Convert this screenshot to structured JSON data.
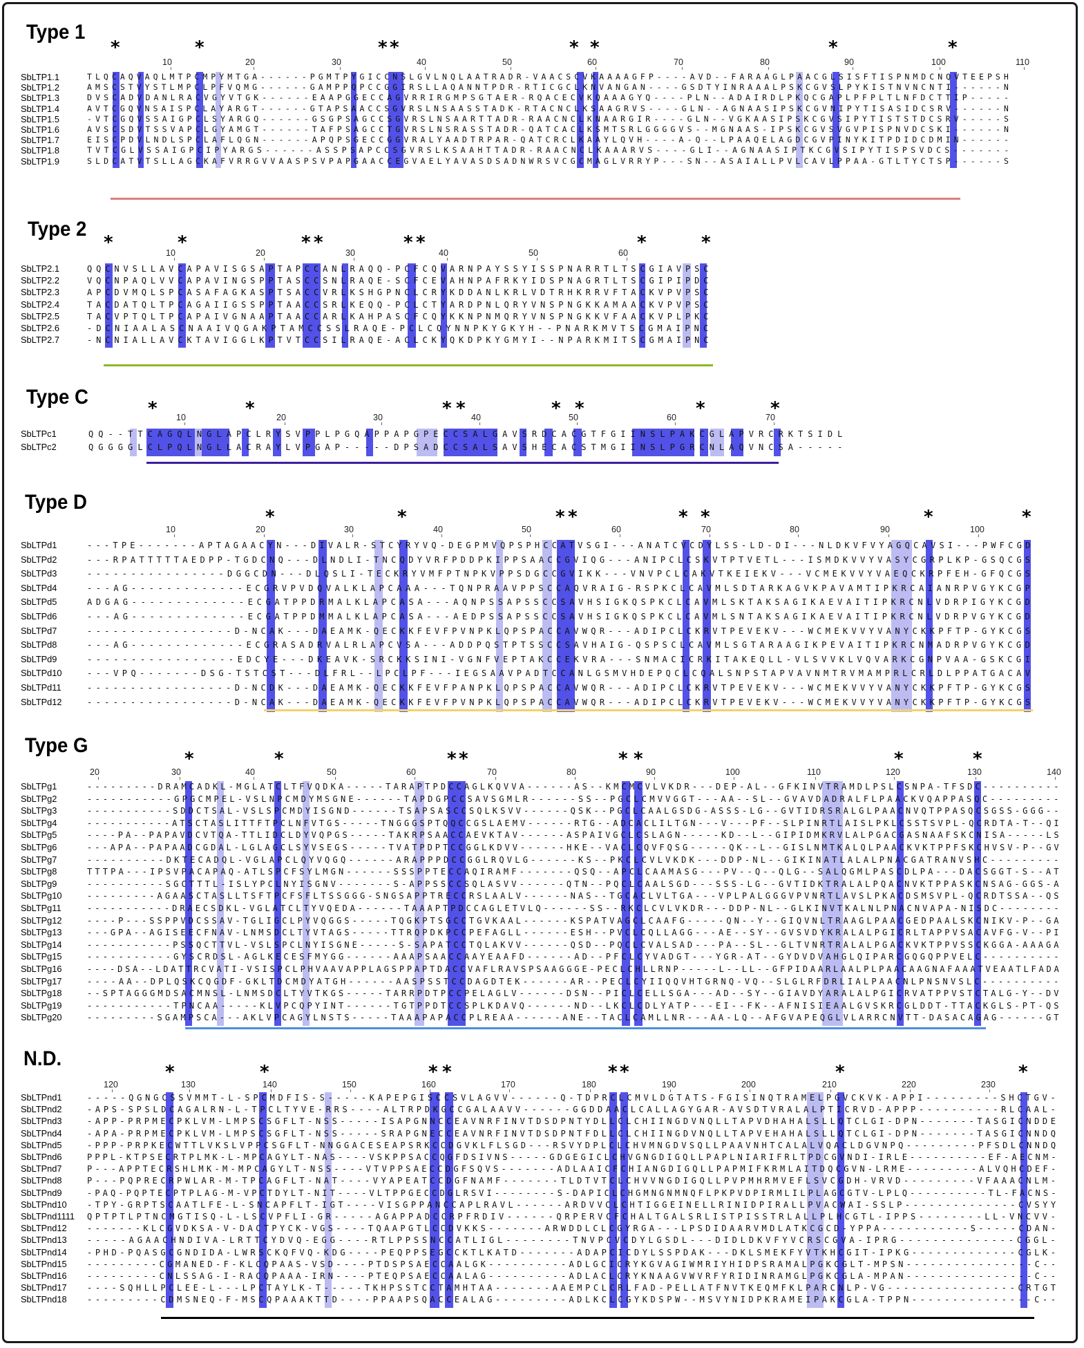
{
  "panels": [
    {
      "title": "Type 1",
      "ticks": [
        "10",
        "20",
        "30",
        "40",
        "50",
        "60",
        "70",
        "80",
        "90",
        "100",
        "110"
      ],
      "underline_color": "#e07b7b",
      "rows": [
        {
          "label": "SbLTP1.1",
          "seq": "TLQCAQVAQLMTPCMPYMTGA------PGMTPYGICCNSLGVLNQLAATRADR-VAACSCVKAAAAGFP----AVD--FARAAGLPAACGLSISFTISPNMDCNQVTEEPSH"
        },
        {
          "label": "SbLTP1.2",
          "seq": "AMSCSTVYSTLMPCLPFVQMG------GAMPPQPCCGGIRSLLAQANNTPDR-RTICGCLKNVANGAN----GSDTYINRAAALPSKCGVSLPYKISTNVNCNTI------N"
        },
        {
          "label": "SbLTP1.3",
          "seq": "DVSCADVDANLRACVGYVTGK------EAAPGGECCAGVRRIRGMPSGTAER-RQACECVKQAAAGYQ----PLN--ADAIRDLPKQCGAPLPFPLTLNFDCTTIP-----"
        },
        {
          "label": "SbLTP1.4",
          "seq": "AVTCGQVNSAISPCLAYARGT------GTAPSAACCSGVRSLNSAASSTADK-RTACNCLKSAAGRVS----GLN--AGNAASIPSKCGVNIPYTISASIDCSRV------N"
        },
        {
          "label": "SbLTP1.5",
          "seq": "-VTCGQVSSAIGPCLSYARGQ------GSGPSAGCCSGVRSLNSAARTTADR-RAACNCLKNAARGIR----GLN--VGKAASIPSKCGVSIPYTISTSTDCSRV-----S"
        },
        {
          "label": "SbLTP1.6",
          "seq": "AVSCSDVTSSVAPCLGYAMGT------TAFPSAGCCTGVRSLNSRASSTADR-QATCACLKSMTSRLGGGGVS--MGNAAS-IPSKCGVSVGVPISPNVDCSKI------N"
        },
        {
          "label": "SbLTP1.7",
          "seq": "EISCPDVLNDLSPCLAFLQGN------APQPSGECCGGVRALYAADTRPAR-QATCRCLKAAYLQVH----A-Q--LPAAQELAGDCGVPINYKITPDIDCDMIN------"
        },
        {
          "label": "SbLTP1.8",
          "seq": "TVTCGLVSSAIGPCIPYARGS------ASSPSAPCCSGVRSLKSAAHTTADR-RAACNCLKAAARVS----GLI--AGNAASIPTKCGVSIPYTISPSVDCS-------"
        },
        {
          "label": "SbLTP1.9",
          "seq": "SLDCATVTSLLAGCKAFVRRGVVAASPSVPAPGAACCEGVAELYAVASDSADNWRSVCGCMAGLVRRYP---SN--ASAIALLPVLCAVLPPAA-GTLTYCTSP------S"
        }
      ]
    },
    {
      "title": "Type 2",
      "ticks": [
        "10",
        "20",
        "30",
        "40",
        "50",
        "60"
      ],
      "underline_color": "#8fb52a",
      "rows": [
        {
          "label": "SbLTP2.1",
          "seq": "QQCNVSLLAVCAPAVISGSAPTAPCCANLRAQQ-PCFCQVARNPAYSSYISSPNARRTLTSCGIAVPSC"
        },
        {
          "label": "SbLTP2.2",
          "seq": "VQCNPAQLVVCAPAVINGSPPTASCCSNLRAQE-SCFCEVAHNPAFRKYIDSPNAGRTLTSCGIPIPDC"
        },
        {
          "label": "SbLTP2.3",
          "seq": "APCDVMQLSPCASAFAGKASPTSACCVRLKSHGPNCLCRYKDDANLKRLVDTRHKRRVFTACKVPVPSC"
        },
        {
          "label": "SbLTP2.4",
          "seq": "TACDATQLTPCAGAIIGSSPPTAACCSRLKEQQ-PCLCTYARDPNLQRYVNSPNGKKAMAACKVPVPSC"
        },
        {
          "label": "SbLTP2.5",
          "seq": "TACVPTQLTPCAPAIVGNAAPTAACCARLKAHPASCFCQYKKNPNMQRYVNSPNGKKVFAACKVPLPKC"
        },
        {
          "label": "SbLTP2.6",
          "seq": "-DCNIAALASCNAAIVQGAKPTAMCCSSLRAQE-PCLCQYNNPKYGKYH--PNARKMVTSCGMAIPNC"
        },
        {
          "label": "SbLTP2.7",
          "seq": "-NCNIALLAVCKTAVIGGLKPTVTCCSILRAQE-ACLCKYQKDPKYGMYI--NPARKMITSCGMAIPNC"
        }
      ]
    },
    {
      "title": "Type C",
      "ticks": [
        "10",
        "20",
        "30",
        "40",
        "50",
        "60",
        "70"
      ],
      "underline_color": "#3b1f9e",
      "rows": [
        {
          "label": "SbLTPc1",
          "seq": "QQ--TTCAGQLNGLAPCLRYSVPPLPGQAPPAPGPECCSALGAVSRDCACGTFGIINSLPAKCGLAPVRCRKTSIDL"
        },
        {
          "label": "SbLTPc2",
          "seq": "QGGGGLCLPQLNGLLACRAYLVPGAP-----DPSADCCSALSAVSHECACSTMGIINSLPGRCNLAQVNCSA-----"
        }
      ]
    },
    {
      "title": "Type D",
      "ticks": [
        "10",
        "20",
        "30",
        "40",
        "50",
        "60",
        "70",
        "80",
        "90",
        "100"
      ],
      "underline_color": "#f2d36b",
      "rows": [
        {
          "label": "SbLTPd1",
          "seq": "---TPE-------APTAGAACYN---DIVALR-STCYRYVQ-DEGPMVQPSPHCCATVSGI---ANATCVCDYLSS-LD-DI---NLDKVFVYAGQCAVSI---PWFCGD"
        },
        {
          "label": "SbLTPd2",
          "seq": "---RPATTTTTAEDPP-TGDCNQ---DLNDLI-TNCQDYVRFPDDPKIPPSAACCGVIQG---ANIPCLCSKVTPTVETL---ISMDKVVYVASYCGRPLKP-GSQCGS"
        },
        {
          "label": "SbLTPd3",
          "seq": "----------------DGGCDN---DLQSLI-TECKRYVMFPTNPKVPPSDGCCGVIKK---VNVPCLCAKVTKEIEKV---VCMEKVVYVAEQCKRPFEH-GFQCGS"
        },
        {
          "label": "SbLTPd4",
          "seq": "---AG-------------ECGRVPVDQVALKLAPCAAA---TQNPRAAVPPSCCAQVRAIG-RSPKCLCAVMLSDTARKAGVKPAVAMTIPKRCAIANRPVGYKCGP"
        },
        {
          "label": "SbLTPd5",
          "seq": "ADGAG-------------ECGATPPDRMALKLAPCASA---AQNPSSAPSSCCSAVHSIGKQSPKCLCAVMLSKTAKSAGIKAEVAITIPKRCNLVDRPIGYKCGD"
        },
        {
          "label": "SbLTPd6",
          "seq": "---AG-------------ECGATPPDMMALKLAPCASA---AEDPSSAPSSCCSAVHSIGKQSPKCLCAVMLSNTAKSAGIKAEVAITIPKRCNLVDRPVGYKCGD"
        },
        {
          "label": "SbLTPd7",
          "seq": "-----------------D-NCAK---DAEAMK-QECKKFEVFPVNPKLQPSPACCAVWQR---ADIPCLCKRVTPEVEKV---WCMEKVVYVANYCKKPFTP-GYKCGS"
        },
        {
          "label": "SbLTPd8",
          "seq": "---AG-------------ECGRASADRVALRLAPCVSA---ADDPQSTPTSSCCSAVHAIG-QSPSCLCAVMLSGTARAAGIKPEVAITIPKRCNMADRPVGYKCGD"
        },
        {
          "label": "SbLTPd9",
          "seq": "-----------------EDCYE---DKEAVK-SRCKKSINI-VGNFVEPTAKCCEKVRA---SNMACICRKITAKEQLL-VLSVVKLVQVARKCGNPVAA-GSKCGI"
        },
        {
          "label": "SbLTPd10",
          "seq": "---VPQ-------DSG-TSTCST---DLFRL--LPCLPF---IEGSAAVPADTCCANLGSMVHDEPQCLCQALSNPSTAPVAVNMTRVMAMPRLCRLDLPPATGACAV"
        },
        {
          "label": "SbLTPd11",
          "seq": "-----------------D-NCDK---DAEAMK-QECKKFEVFPANPKLQPSPACCAVWQR---ADIPCLCKRVTPEVEKV---WCMEKVVYVANYCKKPFTP-GYKCGS"
        },
        {
          "label": "SbLTPd12",
          "seq": "-----------------D-NCAK---DAEAMK-QECKKFEVFPVNPKLQPSPACCAVWQR---ADIPCLCKRVTPEVEKV---WCMEKVVYVANYCKKPFTP-GYKCGS"
        }
      ]
    },
    {
      "title": "Type G",
      "ticks": [
        "20",
        "30",
        "40",
        "50",
        "60",
        "70",
        "80",
        "90",
        "100",
        "110",
        "120",
        "130",
        "140"
      ],
      "underline_color": "#4a8fe0",
      "rows": [
        {
          "label": "SbLTPg1",
          "seq": "---------DRAMCADKL-MGLATCLTFVQDKA-----TARAPTPDCCAGLKQVVA------AS--KMCMCVLVKDR---DEP-AL--GFKINVTRAMDLPSLCSNPA-TFSDC----------"
        },
        {
          "label": "SbLTPg2",
          "seq": "-----------GPGCMPEL-VSLNPCMDYMSGNE------TAPDGPCCSAVSGMLR------SS--PGCLCMVVGGT---AA--SL--GVAVDADRALFLPAACKVQAPPASQC---------"
        },
        {
          "label": "SbLTPg3",
          "seq": "-----------SDDCTSAL-VSLSPCMDYISGND------TSAPSASCCSQLKSVV------QSK--PGCLCAALGSDG-ASSS-LG--GVTIDRSRALGLPAACNVQTPPASQCSGSS-GGG--"
        },
        {
          "label": "SbLTPg4",
          "seq": "-----------ATSCTASLITTFTPCLNFVTGS-----TNGGGSPTQQCCGSLAEMV------RTG--ADCACLILTGN---V---PF--SLPINRTLAISLPKLCSSTSVPL-QCRDTA-T--QI"
        },
        {
          "label": "SbLTPg5",
          "seq": "----PA--PAPAVDCVTQA-TTLIDCLDYVQPGS-----TAKRPSAACCAEVKTAV------ASPAIVGCLCSLAGN-----KD--L--GIPIDMKRVLALPGACGASNAAFSKCNISA-----LS"
        },
        {
          "label": "SbLTPg6",
          "seq": "---APA--PAPAADCGDAL-LGLAGCLSYVSEGS-----TVATPDPTCCGGLKDVV------HKE--VACLCQVFQSG-----QK--L--GISLNMTKALQLPAACKVKTPPFSKCHVSV-P--GV"
        },
        {
          "label": "SbLTPg7",
          "seq": "----------DKTECADQL-VGLAPCLQYVQGQ------ARAPPPDCCGGLRQVLG------KS--PKCLCVLVKDK---DDP-NL--GIKINATLALALPNACGATRANVSHC---------"
        },
        {
          "label": "SbLTPg8",
          "seq": "TTTPA---IPSVPACAPAQ-ATLSPCFSYLMGN------SSSPPTECCAQIRAMF-------QSQ--APCLCAAMASG---PV--Q--QLG--SALQGMLPASCDLPA---DACSGGT-S--AT"
        },
        {
          "label": "SbLTPg9",
          "seq": "----------SGCTTTL-ISLYPCLNYISGNV-------S-APPSSCCSQLASVV------QTN--PQCLCAALSGD---SSS-LG--GVTIDKTRALALPQACNVKTPPASKCNSAG-GGS-A"
        },
        {
          "label": "SbLTPg10",
          "seq": "---------AGAASCTASLLTSFTPCFSFLTSSGGG-SNGSAPPTRECCRSLAALV------NAS--TGCACLVLTGA---VPLPALGGGVPVNRTLAVSLPKACDSMSVPL-QCRDTSSA--QS"
        },
        {
          "label": "SbLTPg11",
          "seq": "-----------DRAECSDKL-VGLATCLTYVQEDA------TAAAPTPDCCAGLETVLQ------SS--RKCLCVLVKDR---DDP-NL--GLKINVTKALNLPNACNVAPA-NISDC--------"
        },
        {
          "label": "SbLTPg12",
          "seq": "----P---SSPPVDCSSAV-TGLIGCLPYVQGGS-----TQGKPTSGCCTGVKAAL------KSPATVAGCLCAAFG-----QN--Y--GIQVNLTRAAGLPAACGEDPAALSKCNIKV-P--GA"
        },
        {
          "label": "SbLTPg13",
          "seq": "---GPA--AGISEECFNAV-LNMSDCLTYVTAGS-----TTRQPDKPCCPEFAGLL------ESH--PVCLCQLLAGG---AE--SY--GVSVDYKRALALPGICRLTAPPVSACAVFG-V--PI"
        },
        {
          "label": "SbLTPg14",
          "seq": "-----------PSSQCTTVL-VSLSPCLNYISGNE-----S-SAPATCCTQLAKVV------QSD--PQCLCVALSAD---PA--SL--GLTVNRTRALALPGACKVKTPPVSSCKGGA-AAAGA"
        },
        {
          "label": "SbLTPg15",
          "seq": "-----------GYSCRDSL-AGLKECESFMYGG------AAAPSAACCAAYEAAFD------AD--PFCLCYVADGT---YGR-AT--GYDVDVAHGLQIPARCGQGQPPVELC----------"
        },
        {
          "label": "SbLTPg16",
          "seq": "----DSA--LDATTRCVATI-VSISPCLPHVAAVAPPLAGSPPAPTDACCVAFLRAVSPSAAGGGE-PECLCHLLRNP-----L--LL--GFPIDAARLAALPLPAACAAGNAFAAATVEAATLFADA"
        },
        {
          "label": "SbLTPg17",
          "seq": "----AA--DPLQSKCQGDF-GKLTDCMDYATGH------AASPSSTCCDAGDTEK------AR--PECLCYIIQQVHTGRNQ-VQ--SLGLRFDRLIALPAACNLPNSNVSLC----------"
        },
        {
          "label": "SbLTPg18",
          "seq": "--SPTAGGGMDSACMNSL-LNMSDCLTYVTKGS-----TARRPDTPCCPELAGLV------DSN--PICLCELLSGA---AD--SY--GIAVDYARALALPGICRVATPPVSTCTALG-Y--DV"
        },
        {
          "label": "SbLTPg19",
          "seq": "-----------TPNCAA-----KLVPCQPYINT------TGTPPDTCCSPLKDAVQ------ND--LKCLCDLYATP---EI--FK--AFNISIEAALGVSKRCGLDDT-TTACKGLS-PT-QS"
        },
        {
          "label": "SbLTPg20",
          "seq": "---------SGAMPSCA---AKLVPCAGYLNSTS-----TAAAPAPACCPLREAA------ANE--TACLCAMLLNR---AA-LQ--AFGVAPEQGLVLARRCNVTT-DASACAGAG------GT"
        }
      ]
    },
    {
      "title": "N.D.",
      "ticks": [
        "120",
        "130",
        "140",
        "150",
        "160",
        "170",
        "180",
        "190",
        "200",
        "210",
        "220",
        "230"
      ],
      "underline_color": "#000000",
      "rows": [
        {
          "label": "SbLTPnd1",
          "seq": "-----QGNGCSSVMMT-L-SPCMDFIS-S-----KAPEPGISCCSVLAGVV------Q-TDPRCLCMVLDGTATS-FGISINQTRAMELPGVCKVK-APPI---------SHCTGV-"
        },
        {
          "label": "SbLTPnd2",
          "seq": "-APS-SPSLDCAGALRN-L-TPCLTYVE-RRS----ALTRPDKGCCGALAAVV------GGDDAACLCALLAGYGAR-AVSDTVRALALPTICRVD-APPP----------RLCAAL-"
        },
        {
          "label": "SbLTPnd3",
          "seq": "-APP-PRPMECPKLVM-LMPSCSGFLT-NSS-----ISAPGNNCCEAVNRFINVTDSDPNTYDLLCLCHIINGDVNQLLTAPVDHAHALSLLQTCLGI-DPN-------TASGICNDDE"
        },
        {
          "label": "SbLTPnd4",
          "seq": "-APA-PRPMECPKLVM-LMPSCSGFLT-NSS-----SRAPGNECCEAVNRFINVTDSDPNTFDLLCLCHIINGDVNQLLTAPVEHAHALSLLQTCLGI-DPN-------TASGICNNDQ"
        },
        {
          "label": "SbLTPnd5",
          "seq": "-PPP-PRPKECWTTLVKSLVPPCSGFLT-NNGGACESEAPSRKCCDGVKLFLSGD---RSVYDPLCLCHVMNGDVSQLLPAAVNHTCALALVQACLDGVNPQ---------PFSDLCNNDQ"
        },
        {
          "label": "SbLTPnd6",
          "seq": "PPPL-KTPSECRTPLMK-L-MPCAGYLT-NAS----VSKPPSACCQGFDSIVNS-----GDGEGICLCHVGNGDIGQLLPAPLNIARIFRLTPDCGVNDI-IRLE----------EF-AECNM-"
        },
        {
          "label": "SbLTPnd7",
          "seq": "P---APPTECRSHLMK-M-MPCAGYLT-NSS----VTVPPSAECCDGFSQVS-------ADLAAICFCHIANGDIGQLLPAPMIFKRMLAITDQCGVN-LRME---------ALVQHCDEF-"
        },
        {
          "label": "SbLTPnd8",
          "seq": "P---PQPRECRPWLAR-M-TPCAGFLT-NAT----VYAPEATCCDGFNAMF-------TLDTVTCLCHVVNGDIGQLLPVPMHRMVEFLSVCGDH-VRVD---------VFAAACNLM-"
        },
        {
          "label": "SbLTPnd9",
          "seq": "-PAQ-PQPTECPTPLAG-M-VPCTDYLT-NIT----VLTPPGECCDGLRSVI--------S-DAPICLCHGMNGNMNQFLPKPVDPIRMLILPLAGCGTV-LPLQ----------TL-FACNS-"
        },
        {
          "label": "SbLTPnd10",
          "seq": "-TPY-GRPTSCAATLFE-L-SNCAPFLT-IGT----VISGPPANCCAPLRAVL------ARDVVCLCHTIGGEINELLRINIDPIRALLPVACWAI-SSLP--------------CVSYY"
        },
        {
          "label": "SbLTPnd1111",
          "seq": "QPTPTLPTNCMGTISQ-L-LSCVPFLI-GR-----AGAPPADCCRPFRDIV------QRPERVCFCHALTGALSRLISTPISSTRLALLPLHCGTL-IPPS--------LL-VNCVV-"
        },
        {
          "label": "SbLTPnd12",
          "seq": "-------KLCGVDKSA-V-DACTPYCK-VGS----TQAAPGTLCCDVKKS-------ARWDDLCLCGYRGA---LPSDIDAARVMDLATKCGCD-YPPA-----------S-----CDAN-"
        },
        {
          "label": "SbLTPnd13",
          "seq": "-----AGAACHNDIVA-LRTTCYDVQ-EGG----RTLPPSSNCCATLIGL--------TNVPCVCDYLGSDL---DIDLDKVFYVCRSCGVA-IPRG--------------CGGL-"
        },
        {
          "label": "SbLTPnd14",
          "seq": "-PHD-PQASGCGNDIDA-LWRSCKQFVQ-KDG----PEQPPSEGCCKTLKATD-------ADAPCICDYLSSPDAK---DKLSMEKFYVTKHCGIT-IPKG-------------CGLK-"
        },
        {
          "label": "SbLTPnd15",
          "seq": "---------CGMANED-F-KLCQPAAS-VSD----PTDSPSAECCAALGK----------ADLGCICRYKGVAGIWMRIYHIDPSRAMALPGKCGLT-MPSN----------------C--"
        },
        {
          "label": "SbLTPnd16",
          "seq": "---------CNLSSAG-I-RACQPAAA-IRN----PTEQPSAECCAALAG----------ADLACLCRYKNAAGVWVRFYRIDINRAMGLPGKCGLA-MPAN----------------C--"
        },
        {
          "label": "SbLTPnd17",
          "seq": "----SQHLLPCLEE-L---LPCTAYLK-T-----TKHPSSTCCTAMHTAA-------AAEMPCLCRLFAD-PELLATFNVTKEQMFKLPARCNLP-VG----------------CRTGT"
        },
        {
          "label": "SbLTPnd18",
          "seq": "---------CDMSNEQ-F-MSCQPAAAKTTD----PPAAPSQACCEALAG---------ADLKCLCGYKDSPW--MSVYNIDPKRAMEIPAKCGLA-TPPN---------------C--"
        }
      ]
    }
  ]
}
